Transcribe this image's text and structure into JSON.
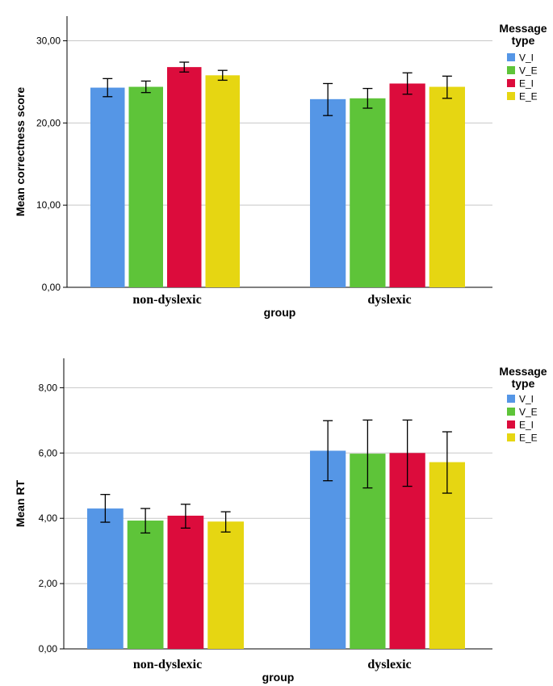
{
  "chart_data": [
    {
      "type": "bar",
      "ylabel": "Mean correctness score",
      "xlabel": "group",
      "ylim": [
        0,
        33
      ],
      "yticks": [
        "0,00",
        "10,00",
        "20,00",
        "30,00"
      ],
      "categories": [
        "non-dyslexic",
        "dyslexic"
      ],
      "legend_title": "Message type",
      "legend_position": "top-right",
      "grid": true,
      "series": [
        {
          "name": "V_I",
          "color": "#5596e6",
          "values": [
            24.3,
            22.9
          ],
          "err_low": [
            23.2,
            20.9
          ],
          "err_high": [
            25.4,
            24.8
          ]
        },
        {
          "name": "V_E",
          "color": "#5ec439",
          "values": [
            24.4,
            23.0
          ],
          "err_low": [
            23.7,
            21.8
          ],
          "err_high": [
            25.1,
            24.2
          ]
        },
        {
          "name": "E_I",
          "color": "#dc0c3c",
          "values": [
            26.8,
            24.8
          ],
          "err_low": [
            26.2,
            23.5
          ],
          "err_high": [
            27.4,
            26.1
          ]
        },
        {
          "name": "E_E",
          "color": "#e6d612",
          "values": [
            25.8,
            24.4
          ],
          "err_low": [
            25.2,
            23.0
          ],
          "err_high": [
            26.4,
            25.7
          ]
        }
      ]
    },
    {
      "type": "bar",
      "ylabel": "Mean RT",
      "xlabel": "group",
      "ylim": [
        0,
        8.9
      ],
      "yticks": [
        "0,00",
        "2,00",
        "4,00",
        "6,00",
        "8,00"
      ],
      "categories": [
        "non-dyslexic",
        "dyslexic"
      ],
      "legend_title": "Message type",
      "legend_position": "top-right",
      "grid": true,
      "series": [
        {
          "name": "V_I",
          "color": "#5596e6",
          "values": [
            4.3,
            6.07
          ],
          "err_low": [
            3.88,
            5.15
          ],
          "err_high": [
            4.73,
            6.99
          ]
        },
        {
          "name": "V_E",
          "color": "#5ec439",
          "values": [
            3.93,
            5.98
          ],
          "err_low": [
            3.55,
            4.93
          ],
          "err_high": [
            4.3,
            7.01
          ]
        },
        {
          "name": "E_I",
          "color": "#dc0c3c",
          "values": [
            4.08,
            6.0
          ],
          "err_low": [
            3.7,
            4.98
          ],
          "err_high": [
            4.43,
            7.01
          ]
        },
        {
          "name": "E_E",
          "color": "#e6d612",
          "values": [
            3.9,
            5.72
          ],
          "err_low": [
            3.58,
            4.77
          ],
          "err_high": [
            4.2,
            6.65
          ]
        }
      ]
    }
  ]
}
